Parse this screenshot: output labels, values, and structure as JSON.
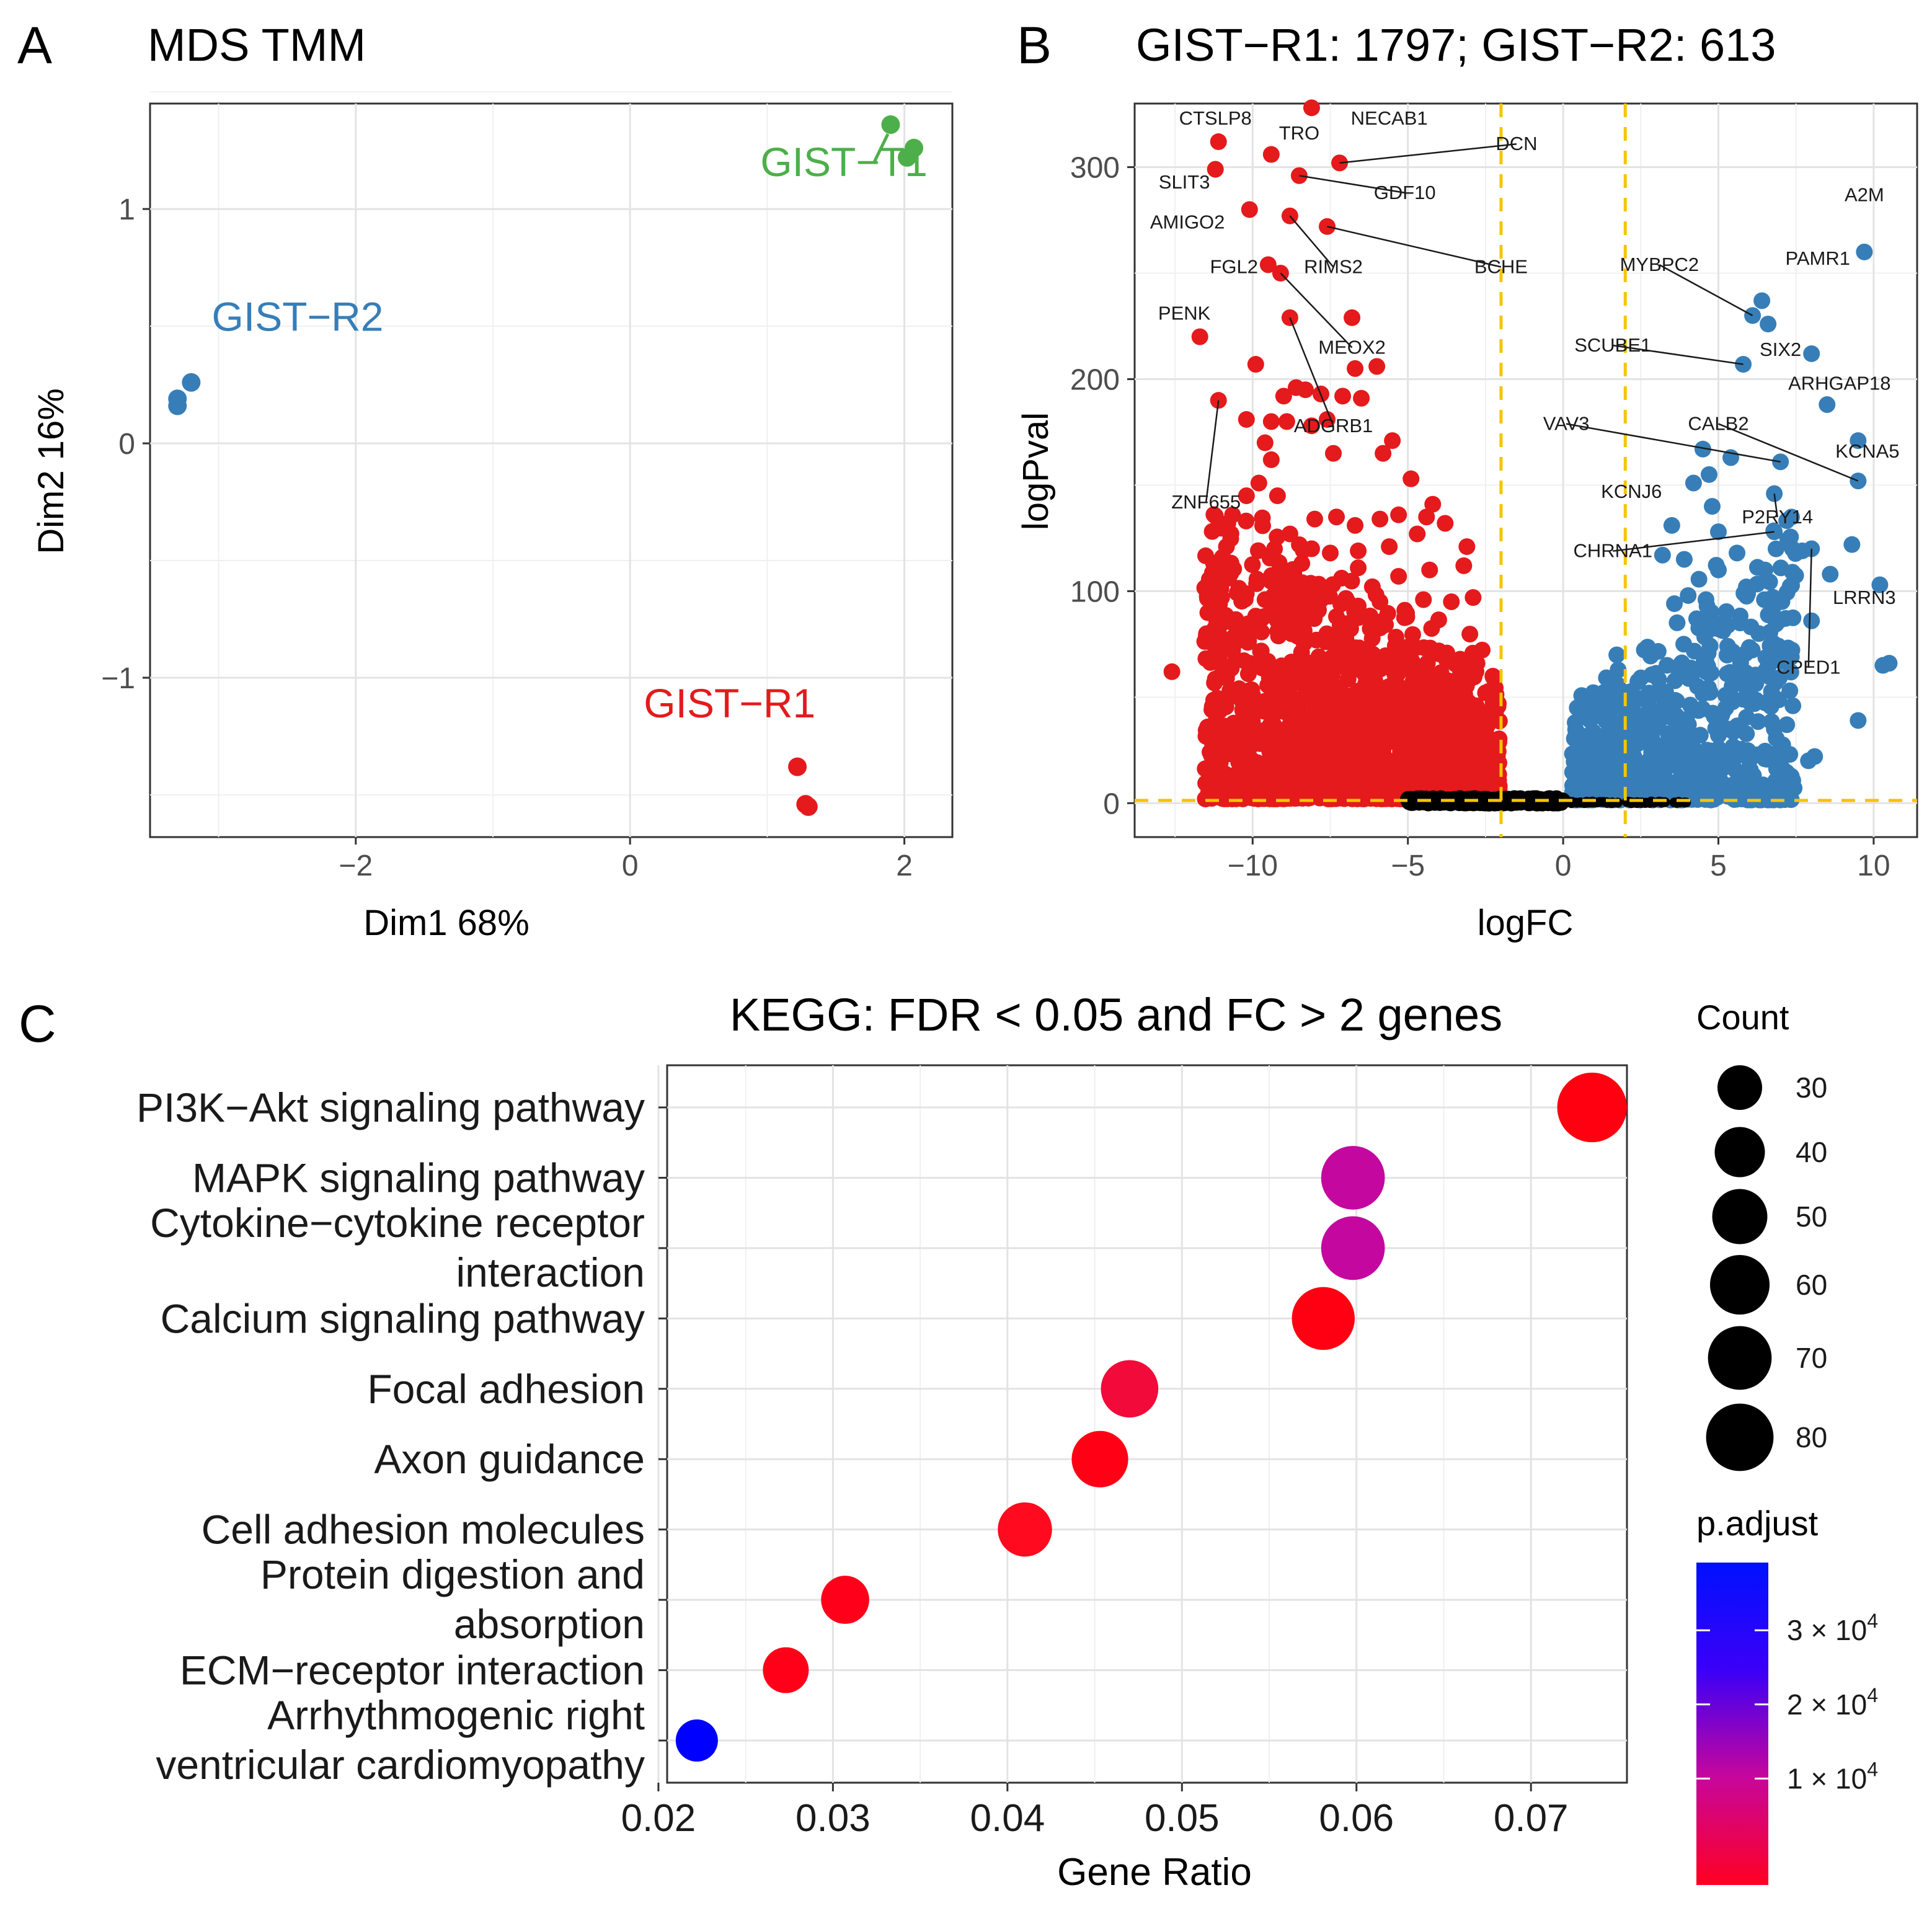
{
  "panels": {
    "a": "A",
    "b": "B",
    "c": "C"
  },
  "chart_data": [
    {
      "id": "A",
      "type": "scatter",
      "title": "MDS TMM",
      "xlabel": "Dim1 68%",
      "ylabel": "Dim2 16%",
      "xlim": [
        -3.5,
        2.35
      ],
      "ylim": [
        -1.68,
        1.45
      ],
      "x_ticks": [
        -2,
        0,
        2
      ],
      "x_tick_labels": [
        "−2",
        "0",
        "2"
      ],
      "y_ticks": [
        -1,
        0,
        1
      ],
      "y_tick_labels": [
        "−1",
        "0",
        "1"
      ],
      "grid": true,
      "series": [
        {
          "name": "GIST−T1",
          "color": "#4daf4a",
          "label_x": 0.95,
          "label_y": 1.14,
          "points": [
            [
              1.9,
              1.36
            ],
            [
              2.02,
              1.22
            ],
            [
              2.07,
              1.26
            ]
          ]
        },
        {
          "name": "GIST−R2",
          "color": "#377eb8",
          "label_x": -3.05,
          "label_y": 0.48,
          "points": [
            [
              -3.3,
              0.16
            ],
            [
              -3.3,
              0.19
            ],
            [
              -3.2,
              0.26
            ]
          ]
        },
        {
          "name": "GIST−R1",
          "color": "#e41a1c",
          "label_x": 0.1,
          "label_y": -1.17,
          "points": [
            [
              1.22,
              -1.38
            ],
            [
              1.28,
              -1.54
            ],
            [
              1.3,
              -1.55
            ]
          ]
        }
      ]
    },
    {
      "id": "B",
      "type": "scatter",
      "title": "GIST−R1: 1797; GIST−R2: 613",
      "xlabel": "logFC",
      "ylabel": "logPval",
      "xlim": [
        -13.8,
        11.4
      ],
      "ylim": [
        -16,
        330
      ],
      "x_ticks": [
        -10,
        -5,
        0,
        5,
        10
      ],
      "x_tick_labels": [
        "−10",
        "−5",
        "0",
        "5",
        "10"
      ],
      "y_ticks": [
        0,
        100,
        200,
        300
      ],
      "y_tick_labels": [
        "0",
        "100",
        "200",
        "300"
      ],
      "grid": true,
      "thresholds": {
        "logFC": [
          -2,
          2
        ],
        "logPval": 1.3,
        "color": "#f5c400"
      },
      "colors": {
        "down": "#e41a1c",
        "up": "#377eb8",
        "ns": "#000000"
      },
      "labeled_genes": [
        {
          "gene": "CTSLP8",
          "x": -11.1,
          "y": 312,
          "lx": -11.2,
          "ly": 320,
          "anchor": "middle",
          "line": false,
          "group": "down"
        },
        {
          "gene": "TRO",
          "x": -9.4,
          "y": 306,
          "lx": -8.5,
          "ly": 313,
          "anchor": "middle",
          "line": false,
          "group": "down"
        },
        {
          "gene": "NECAB1",
          "x": -8.1,
          "y": 328,
          "lx": -5.6,
          "ly": 320,
          "anchor": "middle",
          "line": false,
          "group": "down"
        },
        {
          "gene": "DCN",
          "x": -7.2,
          "y": 302,
          "lx": -1.5,
          "ly": 308,
          "anchor": "middle",
          "line": true,
          "group": "down"
        },
        {
          "gene": "SLIT3",
          "x": -11.2,
          "y": 299,
          "lx": -12.2,
          "ly": 290,
          "anchor": "middle",
          "line": false,
          "group": "down"
        },
        {
          "gene": "GDF10",
          "x": -8.5,
          "y": 296,
          "lx": -5.1,
          "ly": 285,
          "anchor": "middle",
          "line": true,
          "group": "down"
        },
        {
          "gene": "AMIGO2",
          "x": -10.1,
          "y": 280,
          "lx": -12.1,
          "ly": 271,
          "anchor": "middle",
          "line": false,
          "group": "down"
        },
        {
          "gene": "FGL2",
          "x": -9.5,
          "y": 254,
          "lx": -10.6,
          "ly": 250,
          "anchor": "middle",
          "line": false,
          "group": "down"
        },
        {
          "gene": "RIMS2",
          "x": -8.8,
          "y": 277,
          "lx": -7.4,
          "ly": 250,
          "anchor": "middle",
          "line": true,
          "group": "down"
        },
        {
          "gene": "BCHE",
          "x": -7.6,
          "y": 272,
          "lx": -2.0,
          "ly": 250,
          "anchor": "middle",
          "line": true,
          "group": "down"
        },
        {
          "gene": "PENK",
          "x": -11.7,
          "y": 220,
          "lx": -12.2,
          "ly": 228,
          "anchor": "middle",
          "line": false,
          "group": "down"
        },
        {
          "gene": "MEOX2",
          "x": -9.1,
          "y": 250,
          "lx": -6.8,
          "ly": 212,
          "anchor": "middle",
          "line": true,
          "group": "down"
        },
        {
          "gene": "ADGRB1",
          "x": -8.8,
          "y": 229,
          "lx": -7.4,
          "ly": 175,
          "anchor": "middle",
          "line": true,
          "group": "down"
        },
        {
          "gene": "ZNF655",
          "x": -11.1,
          "y": 190,
          "lx": -11.5,
          "ly": 139,
          "anchor": "middle",
          "line": true,
          "group": "down"
        },
        {
          "gene": "A2M",
          "x": 9.7,
          "y": 260,
          "lx": 9.7,
          "ly": 284,
          "anchor": "middle",
          "line": false,
          "group": "up"
        },
        {
          "gene": "MYBPC2",
          "x": 6.1,
          "y": 230,
          "lx": 3.1,
          "ly": 251,
          "anchor": "middle",
          "line": true,
          "group": "up"
        },
        {
          "gene": "PAMR1",
          "x": 6.4,
          "y": 237,
          "lx": 8.2,
          "ly": 254,
          "anchor": "middle",
          "line": false,
          "group": "up"
        },
        {
          "gene": "SIX2",
          "x": 6.6,
          "y": 226,
          "lx": 7.0,
          "ly": 211,
          "anchor": "middle",
          "line": false,
          "group": "up"
        },
        {
          "gene": "SCUBE1",
          "x": 5.8,
          "y": 207,
          "lx": 1.6,
          "ly": 213,
          "anchor": "middle",
          "line": true,
          "group": "up"
        },
        {
          "gene": "ARHGAP18",
          "x": 8.0,
          "y": 212,
          "lx": 8.9,
          "ly": 195,
          "anchor": "middle",
          "line": false,
          "group": "up"
        },
        {
          "gene": "VAV3",
          "x": 7.0,
          "y": 161,
          "lx": 0.1,
          "ly": 176,
          "anchor": "middle",
          "line": true,
          "group": "up"
        },
        {
          "gene": "CALB2",
          "x": 9.5,
          "y": 152,
          "lx": 5.0,
          "ly": 176,
          "anchor": "middle",
          "line": true,
          "group": "up"
        },
        {
          "gene": "KCNA5",
          "x": 9.5,
          "y": 171,
          "lx": 9.8,
          "ly": 163,
          "anchor": "middle",
          "line": false,
          "group": "up"
        },
        {
          "gene": "KCNJ6",
          "x": 4.2,
          "y": 151,
          "lx": 2.2,
          "ly": 144,
          "anchor": "middle",
          "line": false,
          "group": "up"
        },
        {
          "gene": "P2RY14",
          "x": 6.8,
          "y": 146,
          "lx": 6.9,
          "ly": 132,
          "anchor": "middle",
          "line": true,
          "group": "up"
        },
        {
          "gene": "CHRNA1",
          "x": 6.8,
          "y": 128,
          "lx": 1.6,
          "ly": 116,
          "anchor": "middle",
          "line": true,
          "group": "up"
        },
        {
          "gene": "LRRN3",
          "x": 8.6,
          "y": 108,
          "lx": 9.7,
          "ly": 94,
          "anchor": "middle",
          "line": false,
          "group": "up"
        },
        {
          "gene": "CPED1",
          "x": 8.0,
          "y": 120,
          "lx": 7.9,
          "ly": 61,
          "anchor": "middle",
          "line": true,
          "group": "up"
        }
      ],
      "down_outliers": [
        [
          -12.6,
          62
        ],
        [
          -11.0,
          97
        ],
        [
          -10.9,
          113
        ],
        [
          -10.8,
          132
        ],
        [
          -10.2,
          145
        ],
        [
          -10.2,
          181
        ],
        [
          -9.9,
          207
        ],
        [
          -9.8,
          151
        ],
        [
          -9.6,
          170
        ],
        [
          -9.4,
          180
        ],
        [
          -9.4,
          162
        ],
        [
          -9.2,
          145
        ],
        [
          -9.0,
          192
        ],
        [
          -8.9,
          180
        ],
        [
          -8.6,
          196
        ],
        [
          -8.3,
          195
        ],
        [
          -8.1,
          178
        ],
        [
          -7.8,
          193
        ],
        [
          -7.6,
          181
        ],
        [
          -7.4,
          165
        ],
        [
          -7.1,
          192
        ],
        [
          -6.8,
          229
        ],
        [
          -6.7,
          205
        ],
        [
          -6.5,
          191
        ],
        [
          -6.0,
          206
        ],
        [
          -5.8,
          165
        ],
        [
          -5.5,
          171
        ],
        [
          -4.9,
          153
        ],
        [
          -4.4,
          135
        ],
        [
          -4.2,
          141
        ],
        [
          -8.0,
          134
        ],
        [
          -7.3,
          135
        ],
        [
          -6.7,
          131
        ],
        [
          -5.9,
          134
        ],
        [
          -5.3,
          136
        ],
        [
          -8.8,
          127
        ],
        [
          -8.1,
          120
        ],
        [
          -7.5,
          118
        ],
        [
          -6.6,
          119
        ],
        [
          -5.6,
          121
        ],
        [
          -4.7,
          127
        ],
        [
          -3.8,
          132
        ],
        [
          -3.1,
          121
        ],
        [
          -9.0,
          110
        ],
        [
          -8.4,
          104
        ],
        [
          -7.6,
          100
        ],
        [
          -6.6,
          111
        ],
        [
          -5.3,
          107
        ],
        [
          -4.3,
          110
        ],
        [
          -3.2,
          112
        ],
        [
          -10.6,
          75
        ],
        [
          -10.3,
          80
        ],
        [
          -11.1,
          72
        ],
        [
          -9.6,
          96
        ],
        [
          -9.2,
          86
        ],
        [
          -8.6,
          97
        ],
        [
          -8.0,
          92
        ],
        [
          -7.3,
          88
        ],
        [
          -6.6,
          93
        ],
        [
          -5.9,
          95
        ],
        [
          -5.1,
          91
        ],
        [
          -4.5,
          96
        ],
        [
          -3.6,
          95
        ],
        [
          -2.9,
          97
        ]
      ],
      "up_outliers": [
        [
          10.2,
          103
        ],
        [
          10.5,
          66
        ],
        [
          10.3,
          65
        ],
        [
          9.5,
          39
        ],
        [
          9.3,
          122
        ],
        [
          8.5,
          188
        ],
        [
          8.0,
          86
        ],
        [
          7.7,
          119
        ],
        [
          7.2,
          37
        ],
        [
          8.1,
          22
        ],
        [
          7.9,
          20
        ],
        [
          7.3,
          23
        ],
        [
          6.5,
          110
        ],
        [
          5.9,
          102
        ],
        [
          5.6,
          118
        ],
        [
          5.0,
          128
        ],
        [
          4.7,
          155
        ],
        [
          4.8,
          140
        ],
        [
          4.5,
          167
        ],
        [
          5.4,
          163
        ],
        [
          5.0,
          110
        ],
        [
          4.6,
          96
        ],
        [
          4.3,
          87
        ],
        [
          3.9,
          115
        ],
        [
          3.5,
          131
        ],
        [
          3.2,
          117
        ],
        [
          5.7,
          85
        ],
        [
          6.3,
          80
        ],
        [
          6.9,
          71
        ],
        [
          5.3,
          74
        ],
        [
          4.6,
          62
        ],
        [
          7.3,
          53
        ],
        [
          5.8,
          49
        ],
        [
          6.8,
          35
        ],
        [
          4.2,
          44
        ],
        [
          5.0,
          32
        ]
      ],
      "cloud": {
        "seed": 12345
      }
    },
    {
      "id": "C",
      "type": "scatter",
      "title": "KEGG: FDR < 0.05 and FC > 2 genes",
      "xlabel": "Gene Ratio",
      "xlim": [
        0.0205,
        0.0755
      ],
      "x_ticks": [
        0.02,
        0.03,
        0.04,
        0.05,
        0.06,
        0.07
      ],
      "x_tick_labels": [
        "0.02",
        "0.03",
        "0.04",
        "0.05",
        "0.06",
        "0.07"
      ],
      "grid": true,
      "categories": [
        [
          "PI3K−Akt signaling pathway"
        ],
        [
          "MAPK signaling pathway"
        ],
        [
          "Cytokine−cytokine receptor",
          "interaction"
        ],
        [
          "Calcium signaling pathway"
        ],
        [
          "Focal adhesion"
        ],
        [
          "Axon guidance"
        ],
        [
          "Cell adhesion molecules"
        ],
        [
          "Protein digestion and",
          "absorption"
        ],
        [
          "ECM−receptor interaction"
        ],
        [
          "Arrhythmogenic right",
          "ventricular cardiomyopathy"
        ]
      ],
      "gene_ratio": [
        0.0735,
        0.0598,
        0.0598,
        0.0581,
        0.047,
        0.0453,
        0.041,
        0.0307,
        0.0273,
        0.0222
      ],
      "count": [
        86,
        70,
        70,
        68,
        55,
        53,
        48,
        36,
        32,
        26
      ],
      "color": [
        "#ff0010",
        "#c4079f",
        "#c4079f",
        "#ff0012",
        "#f20a3a",
        "#ff0015",
        "#ff0a1e",
        "#ff001b",
        "#ff0018",
        "#0000ff"
      ],
      "legend_count": {
        "title": "Count",
        "values": [
          30,
          40,
          50,
          60,
          70,
          80
        ],
        "labels": [
          "30",
          "40",
          "50",
          "60",
          "70",
          "80"
        ]
      },
      "legend_padjust": {
        "title": "p.adjust",
        "colors": [
          "#ff0022",
          "#c7069b",
          "#3b00f7",
          "#0010ff"
        ],
        "ticks": [
          {
            "base": "1 × 10",
            "exp": "4",
            "frac": 0.33
          },
          {
            "base": "2 × 10",
            "exp": "4",
            "frac": 0.56
          },
          {
            "base": "3 × 10",
            "exp": "4",
            "frac": 0.79
          }
        ]
      }
    }
  ]
}
